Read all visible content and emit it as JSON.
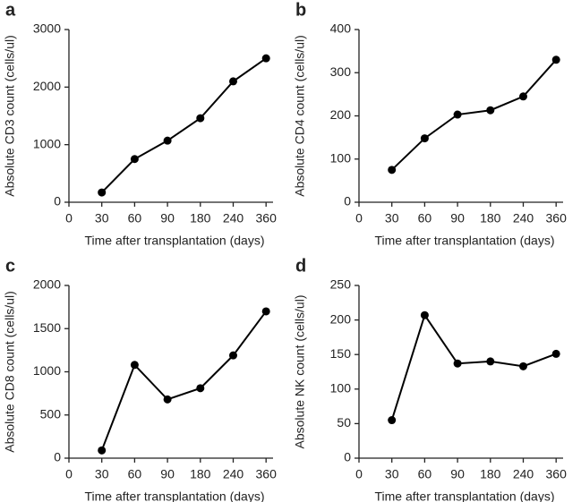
{
  "chart_data": [
    {
      "type": "line",
      "panel": "a",
      "ylabel": "Absolute CD3 count (cells/ul)",
      "xlabel": "Time after transplantation (days)",
      "categories": [
        "0",
        "30",
        "60",
        "90",
        "180",
        "240",
        "360"
      ],
      "values": [
        null,
        170,
        750,
        1070,
        1460,
        2100,
        2500
      ],
      "color": "#000000",
      "ylim": [
        0,
        3000
      ],
      "yticks": [
        0,
        1000,
        2000,
        3000
      ]
    },
    {
      "type": "line",
      "panel": "b",
      "ylabel": "Absolute CD4 count (cells/ul)",
      "xlabel": "Time after transplantation (days)",
      "categories": [
        "0",
        "30",
        "60",
        "90",
        "180",
        "240",
        "360"
      ],
      "values": [
        null,
        75,
        148,
        203,
        213,
        245,
        330
      ],
      "color": "#000000",
      "ylim": [
        0,
        400
      ],
      "yticks": [
        0,
        100,
        200,
        300,
        400
      ]
    },
    {
      "type": "line",
      "panel": "c",
      "ylabel": "Absolute CD8 count (cells/ul)",
      "xlabel": "Time after transplantation (days)",
      "categories": [
        "0",
        "30",
        "60",
        "90",
        "180",
        "240",
        "360"
      ],
      "values": [
        null,
        90,
        1080,
        680,
        810,
        1190,
        1700
      ],
      "color": "#000000",
      "ylim": [
        0,
        2000
      ],
      "yticks": [
        0,
        500,
        1000,
        1500,
        2000
      ]
    },
    {
      "type": "line",
      "panel": "d",
      "ylabel": "Absolute NK count (cells/ul)",
      "xlabel": "Time after transplantation (days)",
      "categories": [
        "0",
        "30",
        "60",
        "90",
        "180",
        "240",
        "360"
      ],
      "values": [
        null,
        55,
        207,
        137,
        140,
        133,
        151
      ],
      "color": "#000000",
      "ylim": [
        0,
        250
      ],
      "yticks": [
        0,
        50,
        100,
        150,
        200,
        250
      ]
    }
  ]
}
